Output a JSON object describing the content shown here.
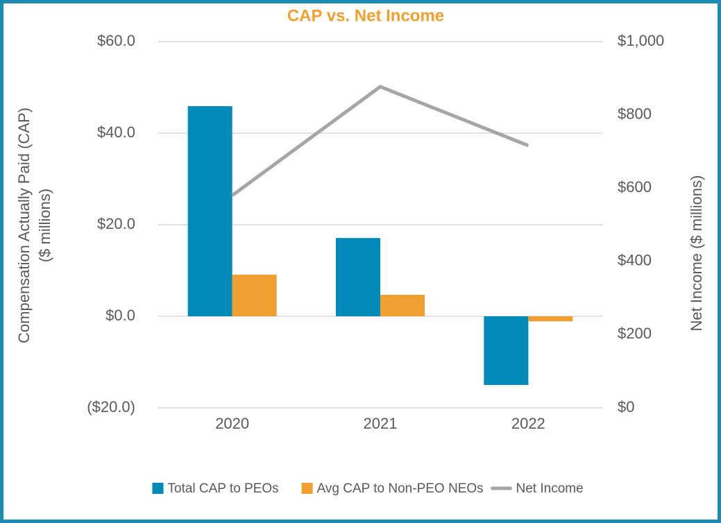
{
  "chart_data": {
    "type": "bar",
    "title": "CAP vs. Net Income",
    "categories": [
      "2020",
      "2021",
      "2022"
    ],
    "y_label": [
      "Compensation Actually Paid (CAP)",
      "($ millions)"
    ],
    "y2_label": "Net Income ($ millions)",
    "series": [
      {
        "name": "Total CAP to PEOs",
        "color": "#008bba",
        "values": [
          45.9,
          17.1,
          -15.0
        ]
      },
      {
        "name": "Avg CAP to Non-PEO NEOs",
        "color": "#f0a030",
        "values": [
          9.1,
          4.7,
          -1.1
        ]
      },
      {
        "name": "Net Income",
        "color": "#a6a6a6",
        "type": "line",
        "axis": "y2",
        "values": [
          580,
          877,
          716
        ]
      }
    ],
    "ylim": [
      -20,
      60
    ],
    "yticks": [
      {
        "value": -20,
        "label": "($20.0)"
      },
      {
        "value": 0,
        "label": "$0.0"
      },
      {
        "value": 20,
        "label": "$20.0"
      },
      {
        "value": 40,
        "label": "$40.0"
      },
      {
        "value": 60,
        "label": "$60.0"
      }
    ],
    "y2lim": [
      0,
      1000
    ],
    "y2ticks": [
      {
        "value": 0,
        "label": "$0"
      },
      {
        "value": 200,
        "label": "$200"
      },
      {
        "value": 400,
        "label": "$400"
      },
      {
        "value": 600,
        "label": "$600"
      },
      {
        "value": 800,
        "label": "$800"
      },
      {
        "value": 1000,
        "label": "$1,000"
      }
    ],
    "grid": true,
    "legend": "bottom",
    "title_color": "#f0a030",
    "border_color": "#1e8bb5"
  }
}
